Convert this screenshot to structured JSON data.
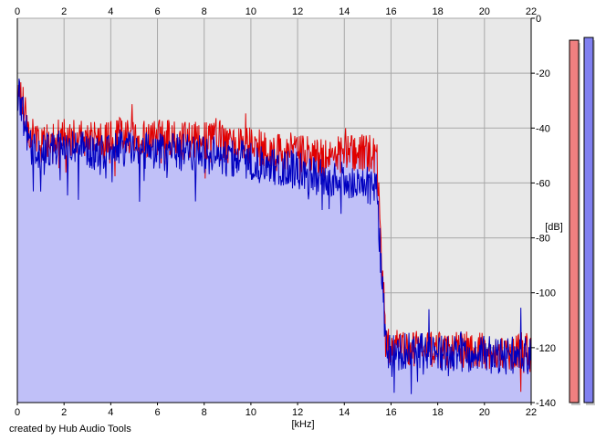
{
  "footer": {
    "credit": "created by Hub Audio Tools"
  },
  "chart_data": {
    "type": "area",
    "title": "",
    "xlabel": "[kHz]",
    "ylabel": "[dB]",
    "xlim": [
      0,
      22
    ],
    "ylim": [
      -140,
      0
    ],
    "x_ticks": [
      "0",
      "2",
      "4",
      "6",
      "8",
      "10",
      "12",
      "14",
      "16",
      "18",
      "20",
      "22"
    ],
    "y_ticks": [
      "0",
      "-20",
      "-40",
      "-60",
      "-80",
      "-100",
      "-120",
      "-140"
    ],
    "grid": true,
    "x_ticks_top_and_bottom": true,
    "y_axis_side": "right",
    "background_color": "#e8e8e8",
    "fill_color": "#c0c0f8",
    "series": [
      {
        "color": "#e00000",
        "x": [
          0,
          0.2,
          0.4,
          0.6,
          0.8,
          1.0,
          1.2,
          1.5,
          2.0,
          2.5,
          3.0,
          3.5,
          4.0,
          4.5,
          5.0,
          5.5,
          6.0,
          6.5,
          7.0,
          7.5,
          8.0,
          8.5,
          9.0,
          9.5,
          10.0,
          10.5,
          11.0,
          11.5,
          12.0,
          12.5,
          13.0,
          13.5,
          14.0,
          14.5,
          15.0,
          15.4,
          15.6,
          15.8,
          16.0,
          16.5,
          17.0,
          17.5,
          18.0,
          18.5,
          19.0,
          19.5,
          20.0,
          20.5,
          21.0,
          21.5,
          22.0
        ],
        "values": [
          -24,
          -30,
          -38,
          -44,
          -42,
          -46,
          -45,
          -44,
          -43,
          -44,
          -44,
          -45,
          -44,
          -42,
          -44,
          -44,
          -43,
          -44,
          -45,
          -44,
          -45,
          -44,
          -46,
          -46,
          -46,
          -48,
          -49,
          -48,
          -49,
          -50,
          -51,
          -50,
          -50,
          -49,
          -49,
          -50,
          -90,
          -118,
          -121,
          -120,
          -121,
          -120,
          -121,
          -121,
          -120,
          -122,
          -121,
          -122,
          -122,
          -121,
          -122
        ]
      },
      {
        "color": "#0000c0",
        "x": [
          0,
          0.2,
          0.4,
          0.6,
          0.8,
          1.0,
          1.2,
          1.5,
          2.0,
          2.5,
          3.0,
          3.5,
          4.0,
          4.5,
          5.0,
          5.5,
          6.0,
          6.5,
          7.0,
          7.5,
          8.0,
          8.5,
          9.0,
          9.5,
          10.0,
          10.5,
          11.0,
          11.5,
          12.0,
          12.5,
          13.0,
          13.5,
          14.0,
          14.5,
          15.0,
          15.4,
          15.6,
          15.8,
          16.0,
          16.5,
          17.0,
          17.5,
          18.0,
          18.5,
          19.0,
          19.5,
          20.0,
          20.5,
          21.0,
          21.5,
          22.0
        ],
        "values": [
          -26,
          -34,
          -42,
          -48,
          -47,
          -49,
          -48,
          -47,
          -47,
          -48,
          -48,
          -49,
          -48,
          -47,
          -48,
          -48,
          -48,
          -49,
          -49,
          -49,
          -50,
          -50,
          -51,
          -51,
          -52,
          -53,
          -54,
          -54,
          -55,
          -57,
          -58,
          -58,
          -59,
          -60,
          -61,
          -63,
          -95,
          -120,
          -122,
          -121,
          -122,
          -121,
          -122,
          -122,
          -122,
          -123,
          -122,
          -123,
          -123,
          -122,
          -123
        ]
      }
    ],
    "level_meters": [
      {
        "channel": "left",
        "color": "#f08080",
        "value_db": -8
      },
      {
        "channel": "right",
        "color": "#8080f0",
        "value_db": -7
      }
    ]
  }
}
